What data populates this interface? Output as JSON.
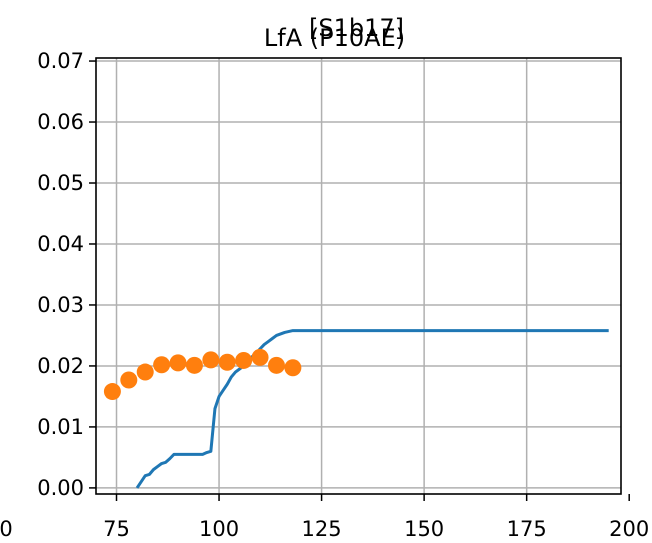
{
  "chart_data": {
    "type": "line",
    "title_lines": [
      "[S1b17]",
      "LfA (P10AE)"
    ],
    "xlabel": "",
    "ylabel": "",
    "xlim": [
      70,
      198
    ],
    "ylim": [
      -0.001,
      0.0705
    ],
    "x_ticks": [
      75,
      100,
      125,
      150,
      175,
      200
    ],
    "x_tick_labels": [
      "75",
      "100",
      "125",
      "150",
      "175",
      "200"
    ],
    "left_cut_tick_label": "0",
    "y_ticks": [
      0.0,
      0.01,
      0.02,
      0.03,
      0.04,
      0.05,
      0.06,
      0.07
    ],
    "y_tick_labels": [
      "0.00",
      "0.01",
      "0.02",
      "0.03",
      "0.04",
      "0.05",
      "0.06",
      "0.07"
    ],
    "grid": true,
    "colors": {
      "line": "#1f77b4",
      "scatter": "#ff7f0e",
      "grid": "#b0b0b0",
      "axis": "#000000"
    },
    "series": [
      {
        "type": "line",
        "x": [
          80,
          81,
          82,
          83,
          84,
          85,
          86,
          87,
          88,
          89,
          90,
          92,
          94,
          96,
          97,
          98,
          99,
          100,
          101,
          102,
          103,
          104,
          105,
          106,
          107,
          108,
          109,
          110,
          111,
          112,
          113,
          114,
          116,
          118,
          120,
          140,
          160,
          180,
          195
        ],
        "y": [
          0.0,
          0.001,
          0.002,
          0.0022,
          0.003,
          0.0035,
          0.004,
          0.0042,
          0.0048,
          0.0055,
          0.0055,
          0.0055,
          0.0055,
          0.0055,
          0.0058,
          0.006,
          0.013,
          0.015,
          0.016,
          0.017,
          0.0182,
          0.019,
          0.0195,
          0.02,
          0.0205,
          0.0215,
          0.022,
          0.0228,
          0.0235,
          0.024,
          0.0245,
          0.025,
          0.0255,
          0.0258,
          0.0258,
          0.0258,
          0.0258,
          0.0258,
          0.0258
        ]
      },
      {
        "type": "scatter",
        "x": [
          74,
          78,
          82,
          86,
          90,
          94,
          98,
          102,
          106,
          110,
          114,
          118
        ],
        "y": [
          0.0158,
          0.0177,
          0.019,
          0.0202,
          0.0205,
          0.0201,
          0.021,
          0.0206,
          0.0209,
          0.0214,
          0.0201,
          0.0197
        ]
      }
    ]
  }
}
